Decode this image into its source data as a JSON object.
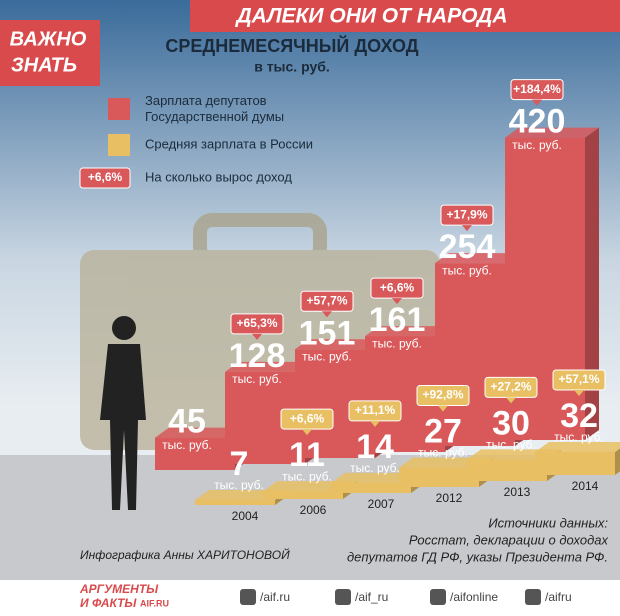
{
  "header": "ДАЛЕКИ ОНИ ОТ НАРОДА",
  "logo": [
    "ВАЖНО",
    "ЗНАТЬ"
  ],
  "chart_data": {
    "type": "bar",
    "title": "СРЕДНЕМЕСЯЧНЫЙ ДОХОД",
    "subtitle": "в тыс. руб.",
    "categories": [
      "2004",
      "2006",
      "2007",
      "2012",
      "2013",
      "2014"
    ],
    "unit": "тыс. руб.",
    "series": [
      {
        "name": "Зарплата депутатов Государственной думы",
        "color": "#d9585a",
        "values": [
          45,
          128,
          151,
          161,
          254,
          420
        ],
        "growth": [
          null,
          "+65,3%",
          "+57,7%",
          "+6,6%",
          "+17,9%",
          "+184,4%"
        ]
      },
      {
        "name": "Средняя зарплата в России",
        "color": "#e8c063",
        "values": [
          7,
          11,
          14,
          27,
          30,
          32
        ],
        "growth": [
          null,
          "+6,6%",
          "+11,1%",
          "+92,8%",
          "+27,2%",
          "+57,1%"
        ]
      }
    ],
    "legend_growth": {
      "sample": "+6,6%",
      "label": "На сколько вырос доход"
    }
  },
  "credit": "Инфографика Анны ХАРИТОНОВОЙ",
  "sources": [
    "Источники данных:",
    "Росстат, декларации о доходах",
    "депутатов ГД РФ, указы Президента РФ."
  ],
  "footer": {
    "brand": [
      "АРГУМЕНТЫ",
      "И ФАКТЫ",
      "AIF.RU"
    ],
    "links": [
      "/aif.ru",
      "/aif_ru",
      "/aifonline",
      "/aifru"
    ]
  }
}
